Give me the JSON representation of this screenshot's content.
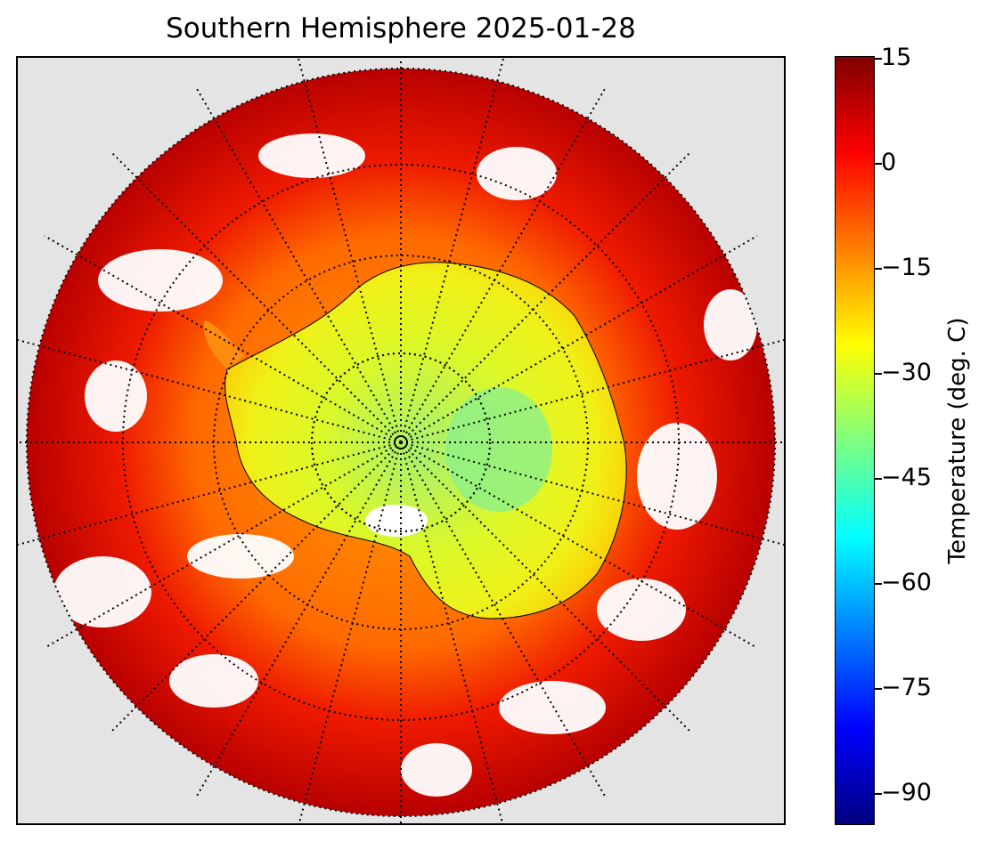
{
  "title": "Southern Hemisphere 2025-01-28",
  "colorbar": {
    "label": "Temperature (deg. C)",
    "ticks": [
      "15",
      "0",
      "−15",
      "−30",
      "−45",
      "−60",
      "−75",
      "−90"
    ],
    "range": [
      -95,
      15
    ],
    "colormap": "jet"
  },
  "map": {
    "projection": "south polar stereographic",
    "graticule": "dotted",
    "colors": {
      "background": "#e4e4e4",
      "warm": "#e01010",
      "cold": "#7ff08a"
    }
  }
}
